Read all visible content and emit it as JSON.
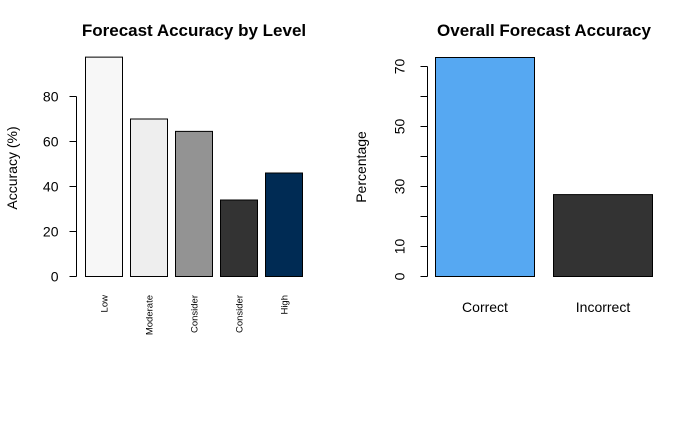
{
  "chart_data": [
    {
      "type": "bar",
      "title": "Forecast Accuracy by Level",
      "xlabel": "",
      "ylabel": "Accuracy (%)",
      "categories": [
        "Low",
        "Moderate",
        "Consider",
        "Consider",
        "High"
      ],
      "values": [
        97.5,
        70,
        64.5,
        34,
        46
      ],
      "colors": [
        "#f7f7f7",
        "#eeeeee",
        "#939393",
        "#333333",
        "#002b54"
      ],
      "ylim": [
        0,
        100
      ],
      "yticks": [
        0,
        20,
        40,
        60,
        80
      ],
      "grid": false,
      "legend": "none"
    },
    {
      "type": "bar",
      "title": "Overall Forecast Accuracy",
      "xlabel": "",
      "ylabel": "Percentage",
      "categories": [
        "Correct",
        "Incorrect"
      ],
      "values": [
        73,
        27.3
      ],
      "colors": [
        "#56a8f2",
        "#333333"
      ],
      "ylim": [
        0,
        73
      ],
      "yticks": [
        0,
        10,
        30,
        50,
        70
      ],
      "yminor_ticks": [
        20,
        40,
        60
      ],
      "grid": false,
      "legend": "none"
    }
  ]
}
